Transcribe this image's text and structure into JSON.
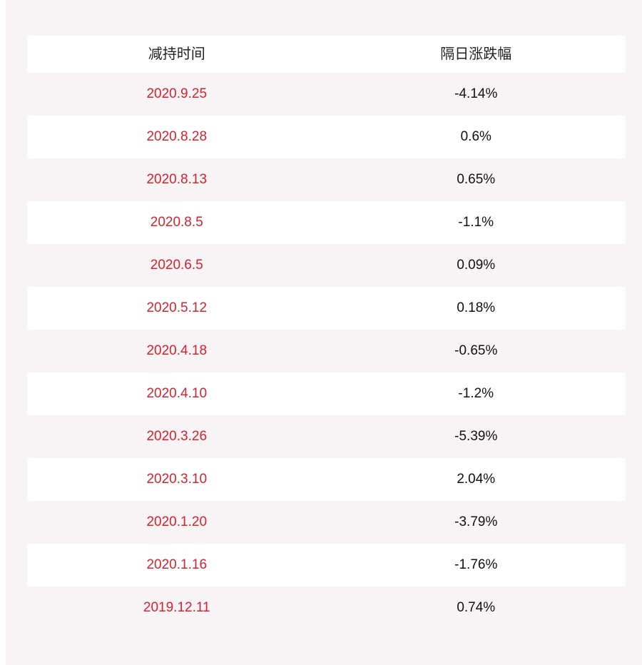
{
  "table": {
    "headers": [
      "减持时间",
      "隔日涨跌幅"
    ],
    "rows": [
      {
        "date": "2020.9.25",
        "change": "-4.14%"
      },
      {
        "date": "2020.8.28",
        "change": "0.6%"
      },
      {
        "date": "2020.8.13",
        "change": "0.65%"
      },
      {
        "date": "2020.8.5",
        "change": "-1.1%"
      },
      {
        "date": "2020.6.5",
        "change": "0.09%"
      },
      {
        "date": "2020.5.12",
        "change": "0.18%"
      },
      {
        "date": "2020.4.18",
        "change": "-0.65%"
      },
      {
        "date": "2020.4.10",
        "change": "-1.2%"
      },
      {
        "date": "2020.3.26",
        "change": "-5.39%"
      },
      {
        "date": "2020.3.10",
        "change": "2.04%"
      },
      {
        "date": "2020.1.20",
        "change": "-3.79%"
      },
      {
        "date": "2020.1.16",
        "change": "-1.76%"
      },
      {
        "date": "2019.12.11",
        "change": "0.74%"
      }
    ]
  },
  "colors": {
    "background": "#f8f4f5",
    "date_text": "#d2232e",
    "value_text": "#111111"
  }
}
